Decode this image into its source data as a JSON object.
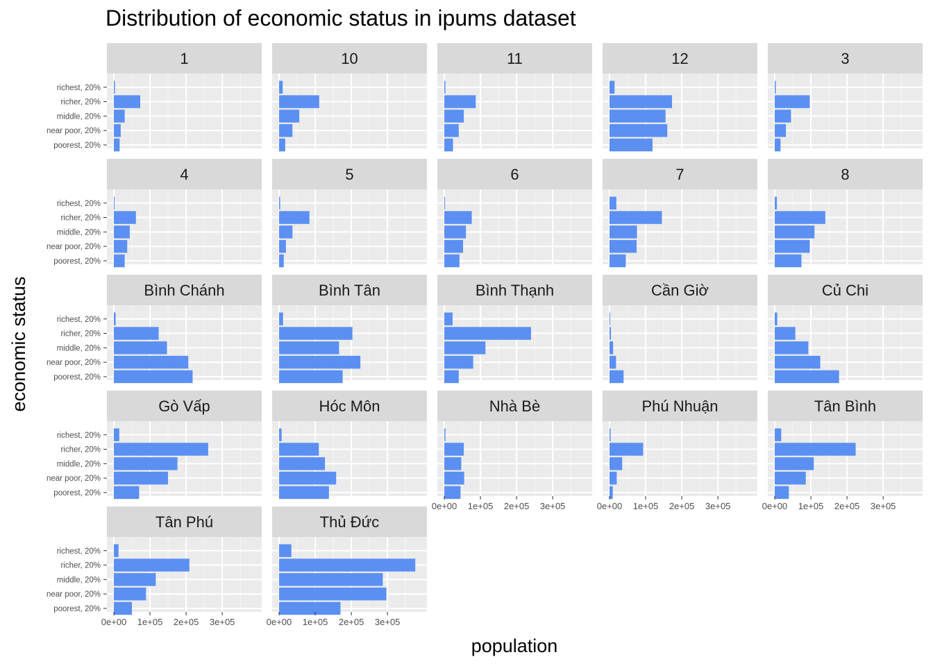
{
  "chart_data": {
    "type": "bar",
    "orientation": "horizontal",
    "title": "Distribution of economic status in ipums dataset",
    "xlabel": "population",
    "ylabel": "economic status",
    "xlim": [
      0,
      390000
    ],
    "x_ticks": [
      0,
      100000,
      200000,
      300000
    ],
    "x_tick_labels": [
      "0e+00",
      "1e+05",
      "2e+05",
      "3e+05"
    ],
    "categories": [
      "richest, 20%",
      "richer, 20%",
      "middle, 20%",
      "near poor, 20%",
      "poorest, 20%"
    ],
    "bar_color": "#5b8ff2",
    "panel_bg": "#ebebeb",
    "strip_bg": "#d9d9d9",
    "grid": true,
    "facets": [
      {
        "name": "1",
        "values": [
          3000,
          73000,
          30000,
          19000,
          16000
        ]
      },
      {
        "name": "10",
        "values": [
          10000,
          111000,
          56000,
          37000,
          17000
        ]
      },
      {
        "name": "11",
        "values": [
          3000,
          87000,
          54000,
          40000,
          24000
        ]
      },
      {
        "name": "12",
        "values": [
          14000,
          173000,
          155000,
          160000,
          119000
        ]
      },
      {
        "name": "3",
        "values": [
          3000,
          97000,
          45000,
          31000,
          16000
        ]
      },
      {
        "name": "4",
        "values": [
          1000,
          61000,
          44000,
          37000,
          30000
        ]
      },
      {
        "name": "5",
        "values": [
          3000,
          84000,
          37000,
          19000,
          13000
        ]
      },
      {
        "name": "6",
        "values": [
          2000,
          76000,
          60000,
          52000,
          42000
        ]
      },
      {
        "name": "7",
        "values": [
          19000,
          145000,
          76000,
          75000,
          45000
        ]
      },
      {
        "name": "8",
        "values": [
          6000,
          140000,
          110000,
          97000,
          74000
        ]
      },
      {
        "name": "Bình Chánh",
        "values": [
          5000,
          124000,
          147000,
          206000,
          218000
        ]
      },
      {
        "name": "Bình Tân",
        "values": [
          11000,
          203000,
          166000,
          225000,
          176000
        ]
      },
      {
        "name": "Bình Thạnh",
        "values": [
          23000,
          240000,
          114000,
          80000,
          40000
        ]
      },
      {
        "name": "Cần Giờ",
        "values": [
          1000,
          4000,
          10000,
          18000,
          39000
        ]
      },
      {
        "name": "Củ Chi",
        "values": [
          7000,
          57000,
          93000,
          126000,
          178000
        ]
      },
      {
        "name": "Gò Vấp",
        "values": [
          15000,
          261000,
          176000,
          150000,
          70000
        ]
      },
      {
        "name": "Hóc Môn",
        "values": [
          7000,
          110000,
          127000,
          158000,
          138000
        ]
      },
      {
        "name": "Nhà Bè",
        "values": [
          3000,
          54000,
          47000,
          55000,
          45000
        ]
      },
      {
        "name": "Phú Nhuận",
        "values": [
          3000,
          93000,
          35000,
          20000,
          9000
        ]
      },
      {
        "name": "Tân Bình",
        "values": [
          18000,
          224000,
          108000,
          86000,
          39000
        ]
      },
      {
        "name": "Tân Phú",
        "values": [
          13000,
          209000,
          116000,
          89000,
          50000
        ]
      },
      {
        "name": "Thủ Đức",
        "values": [
          34000,
          377000,
          287000,
          297000,
          170000
        ]
      }
    ]
  }
}
